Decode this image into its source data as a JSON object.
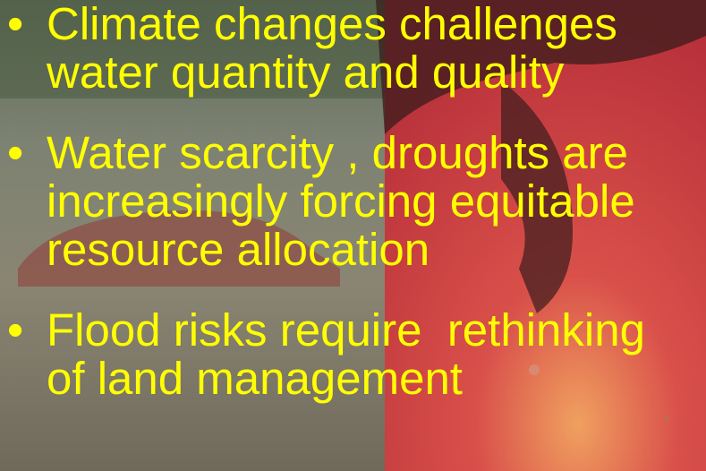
{
  "bullets": [
    {
      "lines": [
        "Climate changes challenges",
        "water quantity and quality"
      ]
    },
    {
      "lines": [
        "Water scarcity , droughts are",
        "increasingly forcing equitable",
        "resource allocation"
      ]
    },
    {
      "lines": [
        "Flood risks require  rethinking",
        "of land management"
      ]
    }
  ]
}
